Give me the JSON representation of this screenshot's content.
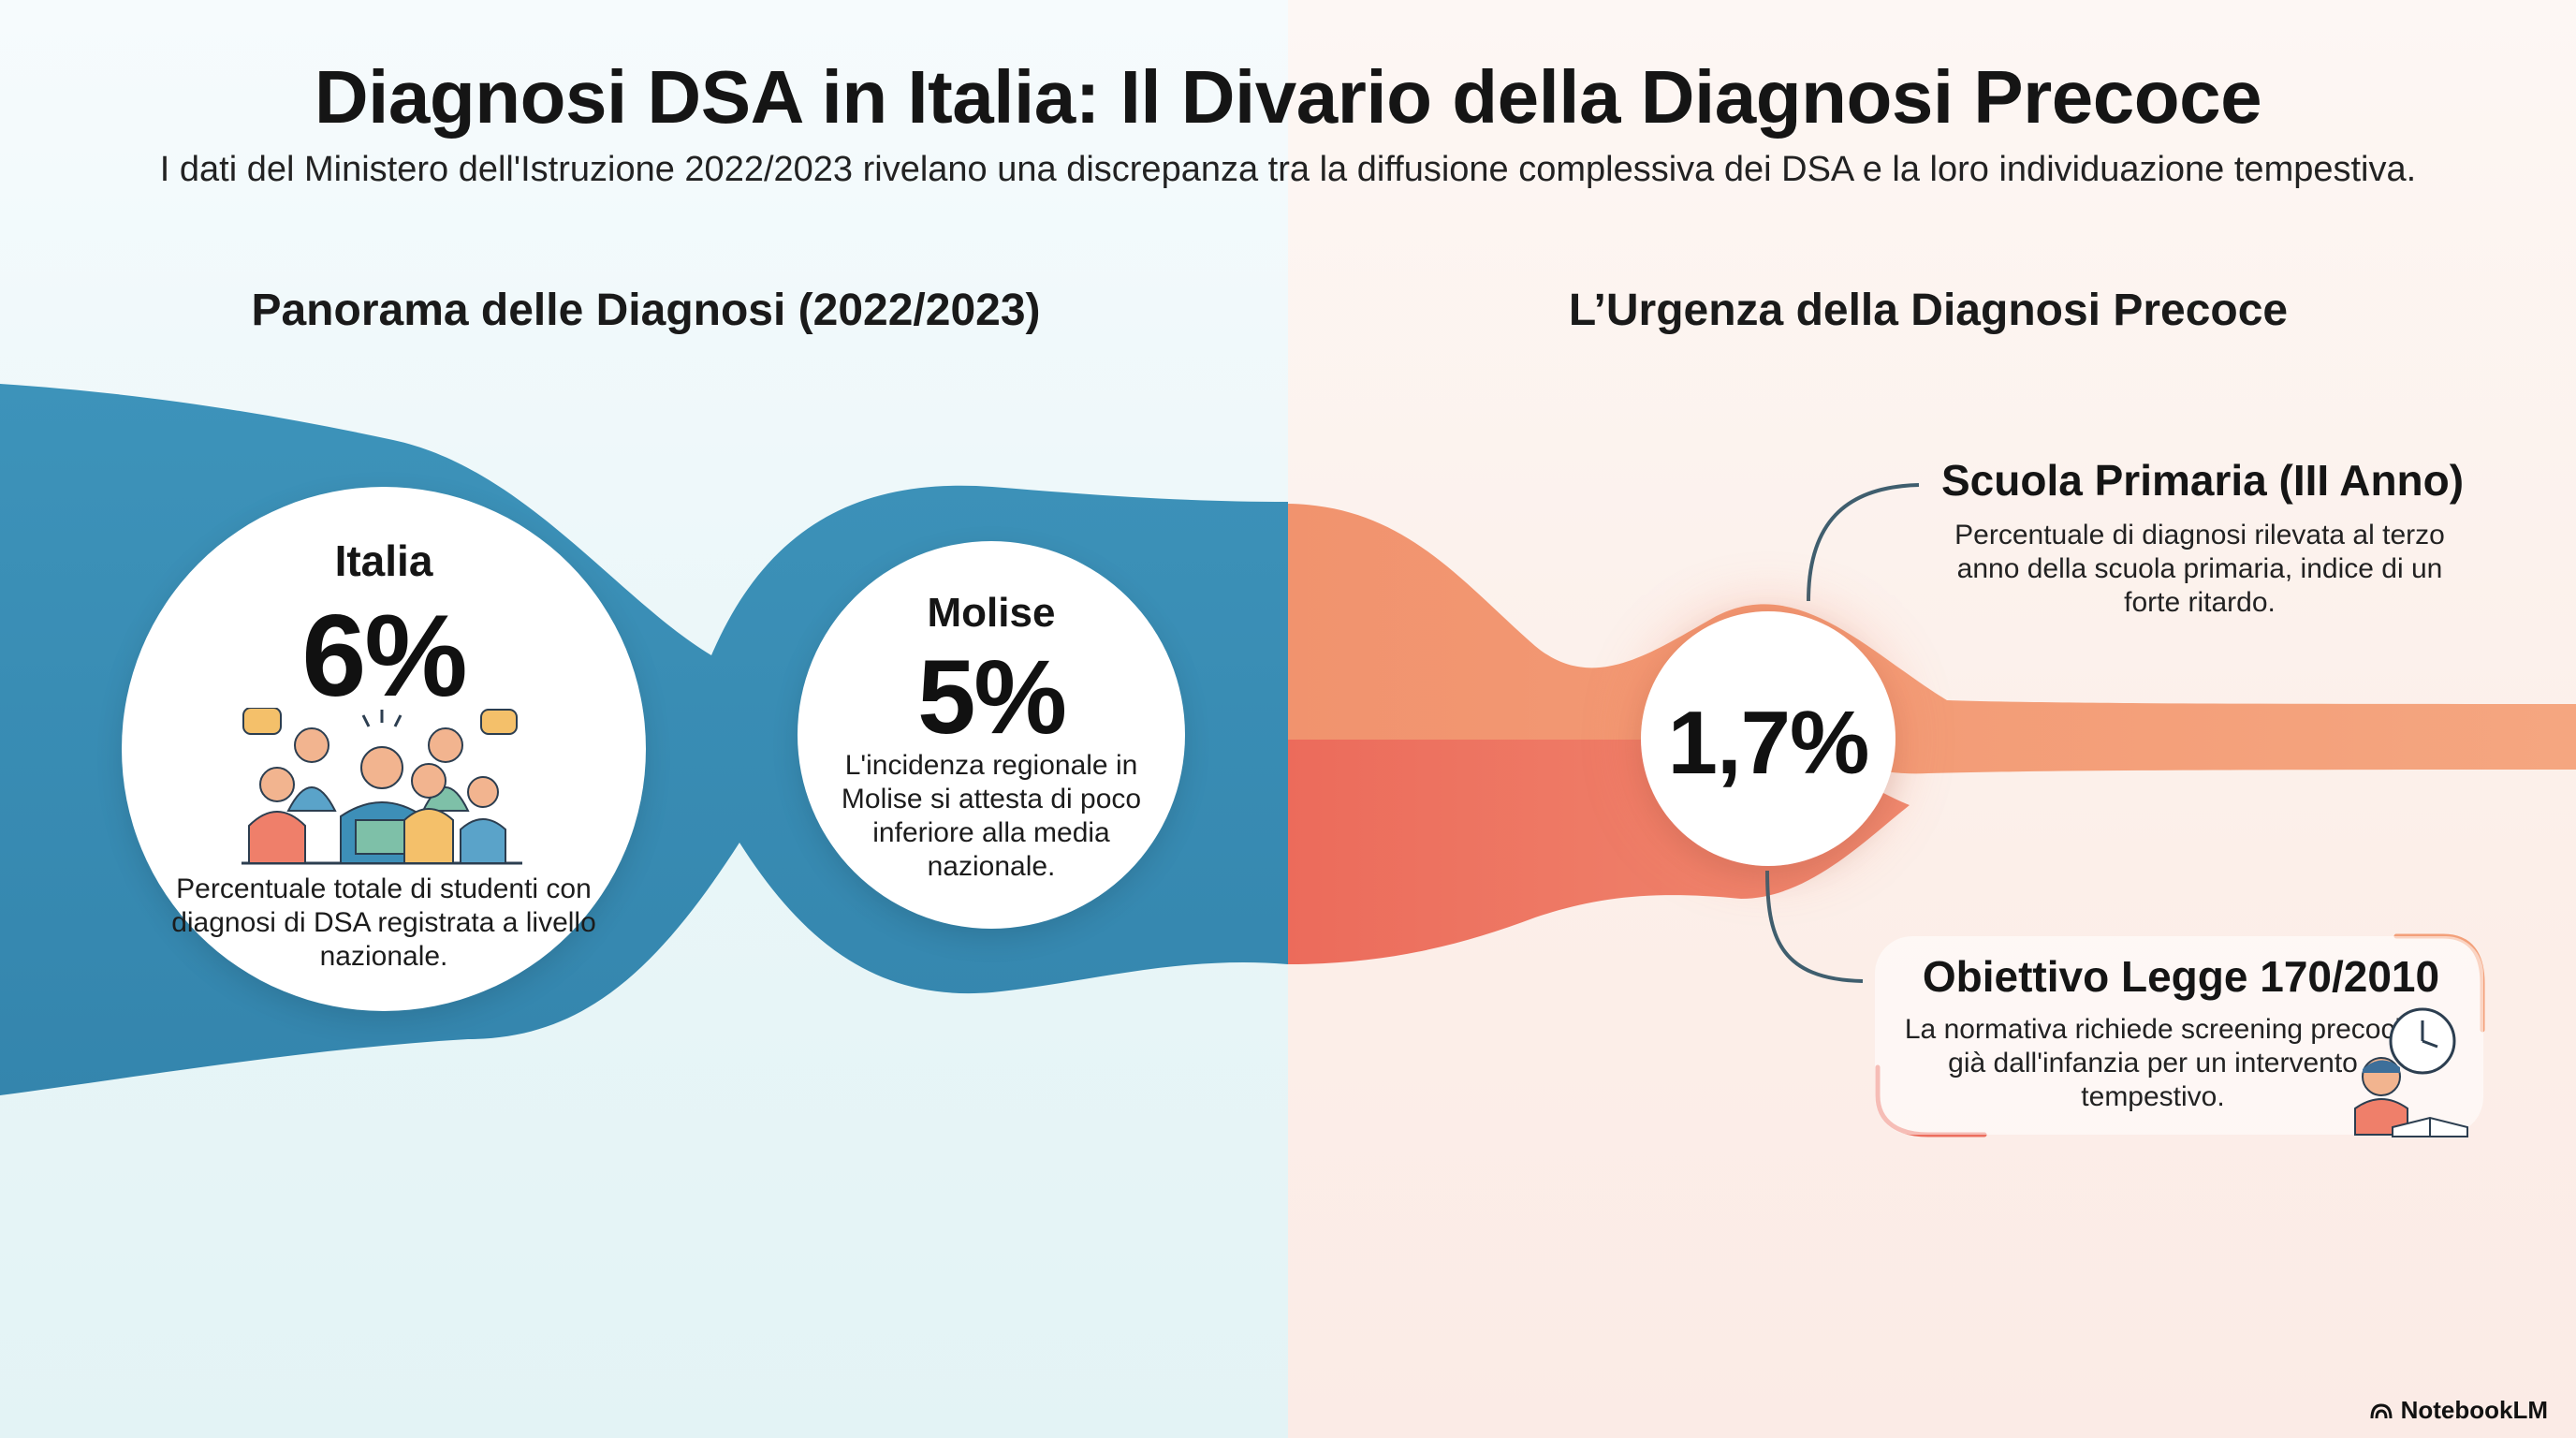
{
  "header": {
    "title": "Diagnosi DSA in Italia: Il Divario della Diagnosi Precoce",
    "subtitle": "I dati del Ministero dell'Istruzione 2022/2023 rivelano una discrepanza tra la diffusione complessiva dei DSA e la loro individuazione tempestiva."
  },
  "left_section": {
    "heading": "Panorama delle Diagnosi (2022/2023)",
    "italia": {
      "label": "Italia",
      "value": "6%",
      "description": "Percentuale totale di studenti con diagnosi di DSA registrata a livello nazionale.",
      "icon": "students-group-icon"
    },
    "molise": {
      "label": "Molise",
      "value": "5%",
      "description": "L'incidenza regionale in Molise si attesta di poco inferiore alla media nazionale."
    }
  },
  "right_section": {
    "heading": "L’Urgenza della Diagnosi Precoce",
    "primaria": {
      "value": "1,7%",
      "title": "Scuola Primaria (III Anno)",
      "description": "Percentuale di diagnosi rilevata al terzo anno della scuola primaria, indice di un forte ritardo."
    },
    "legge": {
      "title": "Obiettivo Legge 170/2010",
      "description": "La normativa richiede screening precoci già dall'infanzia per un intervento tempestivo.",
      "icon": "child-clock-icon"
    }
  },
  "colors": {
    "blue_flow": "#3a8fb6",
    "orange_flow": "#f3a07a",
    "red_flow": "#ec6e5e",
    "connector": "#3f5e6e"
  },
  "brand": {
    "name": "NotebookLM"
  }
}
